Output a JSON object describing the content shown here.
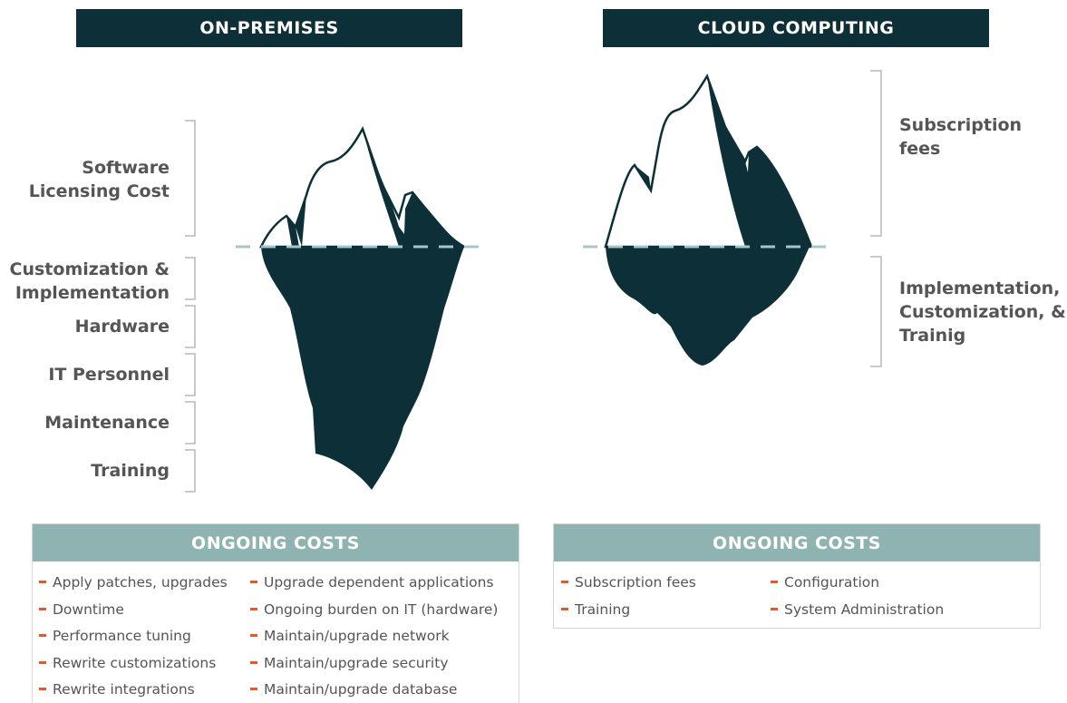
{
  "panels": [
    {
      "title": "ON-PREMISES",
      "labels": [
        [
          "Software",
          "Licensing Cost"
        ],
        [
          "Customization &",
          "Implementation"
        ],
        [
          "Hardware"
        ],
        [
          "IT Personnel"
        ],
        [
          "Maintenance"
        ],
        [
          "Training"
        ]
      ],
      "ongoing": {
        "title": "ONGOING COSTS",
        "items": [
          [
            "Apply patches, upgrades",
            "Upgrade dependent applications"
          ],
          [
            "Downtime",
            "Ongoing burden on IT (hardware)"
          ],
          [
            "Performance tuning",
            "Maintain/upgrade network"
          ],
          [
            "Rewrite customizations",
            "Maintain/upgrade security"
          ],
          [
            "Rewrite integrations",
            "Maintain/upgrade database"
          ]
        ]
      }
    },
    {
      "title": "CLOUD COMPUTING",
      "labels": [
        [
          "Subscription",
          "fees"
        ],
        [
          "Implementation,",
          "Customization, &",
          "Trainig"
        ]
      ],
      "ongoing": {
        "title": "ONGOING COSTS",
        "items": [
          [
            "Subscription fees",
            "Configuration"
          ],
          [
            "Training",
            "System Administration"
          ]
        ]
      }
    }
  ]
}
